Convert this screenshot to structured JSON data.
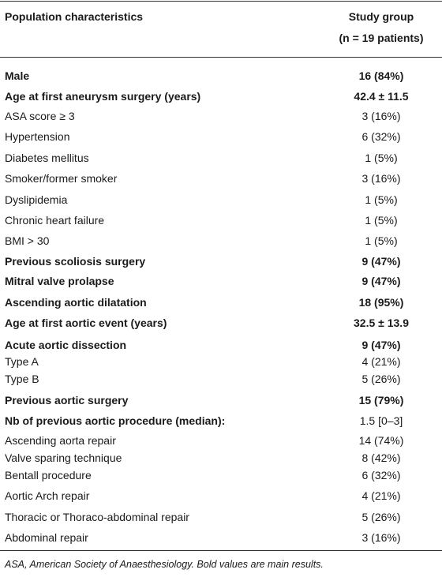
{
  "header": {
    "label": "Population characteristics",
    "group": "Study group",
    "group_size": "(n = 19 patients)"
  },
  "table": {
    "rows": [
      [
        "Male",
        "16 (84%)"
      ],
      [
        "Age at first aneurysm surgery (years)",
        "42.4 ± 11.5"
      ],
      [
        "ASA score ≥ 3",
        "3 (16%)"
      ],
      [
        "Hypertension",
        "6 (32%)"
      ],
      [
        "Diabetes mellitus",
        "1 (5%)"
      ],
      [
        "Smoker/former smoker",
        "3 (16%)"
      ],
      [
        "Dyslipidemia",
        "1 (5%)"
      ],
      [
        "Chronic heart failure",
        "1 (5%)"
      ],
      [
        "BMI > 30",
        "1 (5%)"
      ],
      [
        "Previous scoliosis surgery",
        "9 (47%)"
      ],
      [
        "Mitral valve prolapse",
        "9 (47%)"
      ],
      [
        "Ascending aortic dilatation",
        "18 (95%)"
      ],
      [
        "Age at first aortic event (years)",
        "32.5 ± 13.9"
      ],
      [
        "Acute aortic dissection",
        "9 (47%)"
      ],
      [
        "Type A",
        "4 (21%)"
      ],
      [
        "Type B",
        "5 (26%)"
      ],
      [
        "Previous aortic surgery",
        "15 (79%)"
      ],
      [
        "Nb of previous aortic procedure (median):",
        "1.5 [0–3]"
      ],
      [
        "Ascending aorta repair",
        "14 (74%)"
      ],
      [
        "Valve sparing technique",
        "8 (42%)"
      ],
      [
        "Bentall procedure",
        "6 (32%)"
      ],
      [
        "Aortic Arch repair",
        "4 (21%)"
      ],
      [
        "Thoracic or Thoraco-abdominal repair",
        "5 (26%)"
      ],
      [
        "Abdominal repair",
        "3 (16%)"
      ]
    ]
  },
  "footnote": "ASA, American Society of Anaesthesiology. Bold values are main results."
}
